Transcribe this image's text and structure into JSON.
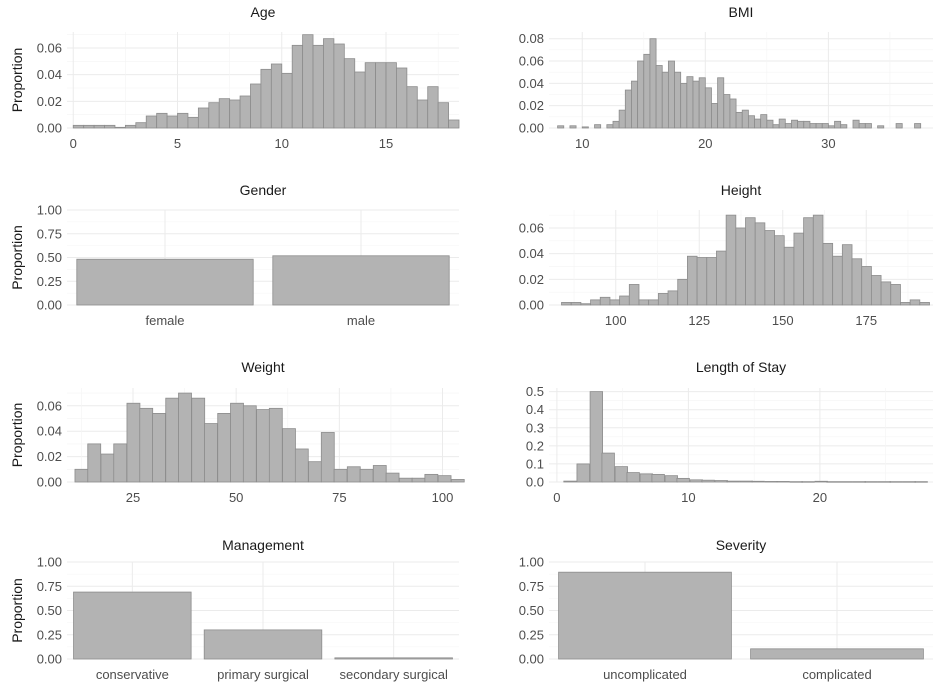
{
  "colors": {
    "bar_fill": "#b3b3b3",
    "bar_stroke": "#8c8c8c",
    "grid": "#ebebeb",
    "background": "#ffffff"
  },
  "chart_data": [
    {
      "type": "bar",
      "title": "Age",
      "ylabel": "Proportion",
      "xlim": [
        -0.3,
        18.5
      ],
      "ylim": [
        0,
        0.072
      ],
      "xticks": [
        0,
        5,
        10,
        15
      ],
      "yticks": [
        0,
        0.02,
        0.04,
        0.06
      ],
      "ytick_labels": [
        "0.00",
        "0.02",
        "0.04",
        "0.06"
      ],
      "bin_width": 0.5,
      "x": [
        0.25,
        0.75,
        1.25,
        1.75,
        2.25,
        2.75,
        3.25,
        3.75,
        4.25,
        4.75,
        5.25,
        5.75,
        6.25,
        6.75,
        7.25,
        7.75,
        8.25,
        8.75,
        9.25,
        9.75,
        10.25,
        10.75,
        11.25,
        11.75,
        12.25,
        12.75,
        13.25,
        13.75,
        14.25,
        14.75,
        15.25,
        15.75,
        16.25,
        16.75,
        17.25,
        17.75,
        18.25
      ],
      "values": [
        0.002,
        0.002,
        0.002,
        0.002,
        0.0005,
        0.002,
        0.004,
        0.009,
        0.011,
        0.009,
        0.011,
        0.008,
        0.015,
        0.019,
        0.022,
        0.021,
        0.024,
        0.033,
        0.044,
        0.048,
        0.041,
        0.062,
        0.07,
        0.062,
        0.067,
        0.063,
        0.052,
        0.042,
        0.049,
        0.049,
        0.049,
        0.045,
        0.031,
        0.021,
        0.031,
        0.019,
        0.006
      ]
    },
    {
      "type": "bar",
      "title": "BMI",
      "ylabel": "",
      "xlim": [
        7.3,
        38.5
      ],
      "ylim": [
        0,
        0.086
      ],
      "xticks": [
        10,
        20,
        30
      ],
      "yticks": [
        0,
        0.02,
        0.04,
        0.06,
        0.08
      ],
      "ytick_labels": [
        "0.00",
        "0.02",
        "0.04",
        "0.06",
        "0.08"
      ],
      "bin_width": 0.5,
      "x": [
        8.25,
        9.25,
        10.25,
        11.25,
        12.25,
        12.75,
        13.25,
        13.75,
        14.25,
        14.75,
        15.25,
        15.75,
        16.25,
        16.75,
        17.25,
        17.75,
        18.25,
        18.75,
        19.25,
        19.75,
        20.25,
        20.75,
        21.25,
        21.75,
        22.25,
        22.75,
        23.25,
        23.75,
        24.25,
        24.75,
        25.25,
        25.75,
        26.25,
        26.75,
        27.25,
        27.75,
        28.25,
        28.75,
        29.25,
        29.75,
        30.25,
        30.75,
        31.25,
        32.25,
        32.75,
        33.25,
        34.25,
        35.75,
        37.25
      ],
      "values": [
        0.002,
        0.002,
        0.001,
        0.003,
        0.003,
        0.006,
        0.016,
        0.034,
        0.042,
        0.06,
        0.066,
        0.08,
        0.056,
        0.05,
        0.06,
        0.05,
        0.04,
        0.046,
        0.042,
        0.045,
        0.036,
        0.022,
        0.045,
        0.03,
        0.026,
        0.014,
        0.016,
        0.011,
        0.008,
        0.012,
        0.007,
        0.003,
        0.008,
        0.004,
        0.007,
        0.006,
        0.006,
        0.004,
        0.004,
        0.004,
        0.002,
        0.006,
        0.003,
        0.007,
        0.004,
        0.004,
        0.002,
        0.004,
        0.004
      ]
    },
    {
      "type": "bar",
      "title": "Gender",
      "ylabel": "Proportion",
      "categories": [
        "female",
        "male"
      ],
      "values": [
        0.482,
        0.518
      ],
      "ylim": [
        0,
        1.0
      ],
      "yticks": [
        0,
        0.25,
        0.5,
        0.75,
        1.0
      ],
      "ytick_labels": [
        "0.00",
        "0.25",
        "0.50",
        "0.75",
        "1.00"
      ]
    },
    {
      "type": "bar",
      "title": "Height",
      "ylabel": "",
      "xlim": [
        80,
        195
      ],
      "ylim": [
        0,
        0.074
      ],
      "xticks": [
        100,
        125,
        150,
        175
      ],
      "yticks": [
        0,
        0.02,
        0.04,
        0.06
      ],
      "ytick_labels": [
        "0.00",
        "0.02",
        "0.04",
        "0.06"
      ],
      "bin_width": 2.9,
      "x": [
        85.2,
        88.1,
        91.0,
        93.9,
        96.8,
        99.7,
        102.6,
        105.5,
        108.4,
        111.3,
        114.2,
        117.1,
        120.0,
        122.9,
        125.8,
        128.7,
        131.6,
        134.5,
        137.4,
        140.3,
        143.2,
        146.1,
        149.0,
        151.9,
        154.8,
        157.7,
        160.6,
        163.5,
        166.4,
        169.3,
        172.2,
        175.1,
        178.0,
        180.9,
        183.8,
        186.7,
        189.6,
        192.5
      ],
      "values": [
        0.002,
        0.002,
        0.001,
        0.004,
        0.006,
        0.004,
        0.007,
        0.016,
        0.004,
        0.004,
        0.009,
        0.011,
        0.02,
        0.038,
        0.037,
        0.037,
        0.042,
        0.07,
        0.06,
        0.068,
        0.064,
        0.058,
        0.054,
        0.045,
        0.056,
        0.068,
        0.07,
        0.048,
        0.038,
        0.047,
        0.036,
        0.03,
        0.023,
        0.018,
        0.016,
        0.002,
        0.004,
        0.002
      ]
    },
    {
      "type": "bar",
      "title": "Weight",
      "ylabel": "Proportion",
      "xlim": [
        9,
        104
      ],
      "ylim": [
        0,
        0.074
      ],
      "xticks": [
        25,
        50,
        75,
        100
      ],
      "yticks": [
        0,
        0.02,
        0.04,
        0.06
      ],
      "ytick_labels": [
        "0.00",
        "0.02",
        "0.04",
        "0.06"
      ],
      "bin_width": 3.14,
      "x": [
        12.5,
        15.6,
        18.8,
        21.9,
        25.1,
        28.2,
        31.3,
        34.5,
        37.6,
        40.8,
        43.9,
        47.1,
        50.2,
        53.3,
        56.5,
        59.6,
        62.8,
        65.9,
        69.1,
        72.2,
        75.3,
        78.5,
        81.6,
        84.8,
        87.9,
        91.1,
        94.2,
        97.3,
        100.5,
        103.7
      ],
      "values": [
        0.01,
        0.03,
        0.022,
        0.03,
        0.062,
        0.058,
        0.054,
        0.066,
        0.07,
        0.066,
        0.046,
        0.054,
        0.062,
        0.06,
        0.057,
        0.058,
        0.042,
        0.026,
        0.016,
        0.039,
        0.01,
        0.012,
        0.01,
        0.013,
        0.007,
        0.003,
        0.003,
        0.006,
        0.005,
        0.002
      ]
    },
    {
      "type": "bar",
      "title": "Length of Stay",
      "ylabel": "",
      "xlim": [
        -0.6,
        28.6
      ],
      "ylim": [
        0,
        0.52
      ],
      "xticks": [
        0,
        10,
        20
      ],
      "yticks": [
        0,
        0.1,
        0.2,
        0.3,
        0.4,
        0.5
      ],
      "ytick_labels": [
        "0.0",
        "0.1",
        "0.2",
        "0.3",
        "0.4",
        "0.5"
      ],
      "bin_width": 0.95,
      "x": [
        1.0,
        2.0,
        3.0,
        3.9,
        4.9,
        5.8,
        6.8,
        7.7,
        8.7,
        9.6,
        10.6,
        11.5,
        12.5,
        13.4,
        14.4,
        15.3,
        16.3,
        17.2,
        18.2,
        19.1,
        20.1,
        21.0,
        22.0,
        23.0,
        23.9,
        24.9,
        25.8,
        26.8,
        27.7
      ],
      "values": [
        0.005,
        0.1,
        0.5,
        0.16,
        0.085,
        0.052,
        0.045,
        0.042,
        0.035,
        0.02,
        0.012,
        0.01,
        0.008,
        0.005,
        0.005,
        0.004,
        0.003,
        0.003,
        0.002,
        0.002,
        0.004,
        0.002,
        0.002,
        0.002,
        0.002,
        0.002,
        0.002,
        0.002,
        0.002
      ]
    },
    {
      "type": "bar",
      "title": "Management",
      "ylabel": "Proportion",
      "categories": [
        "conservative",
        "primary surgical",
        "secondary surgical"
      ],
      "values": [
        0.69,
        0.3,
        0.012
      ],
      "ylim": [
        0,
        1.0
      ],
      "yticks": [
        0,
        0.25,
        0.5,
        0.75,
        1.0
      ],
      "ytick_labels": [
        "0.00",
        "0.25",
        "0.50",
        "0.75",
        "1.00"
      ]
    },
    {
      "type": "bar",
      "title": "Severity",
      "ylabel": "",
      "categories": [
        "uncomplicated",
        "complicated"
      ],
      "values": [
        0.895,
        0.105
      ],
      "ylim": [
        0,
        1.0
      ],
      "yticks": [
        0,
        0.25,
        0.5,
        0.75,
        1.0
      ],
      "ytick_labels": [
        "0.00",
        "0.25",
        "0.50",
        "0.75",
        "1.00"
      ]
    }
  ]
}
